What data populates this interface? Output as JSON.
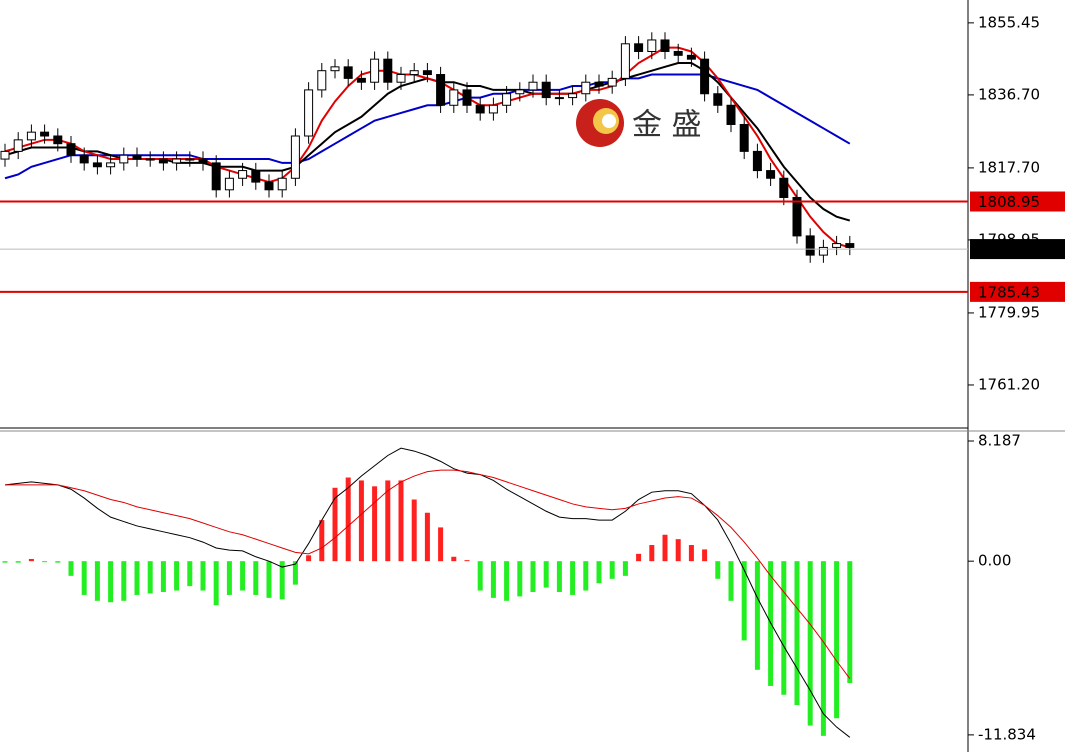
{
  "chart_data": [
    {
      "type": "candlestick",
      "ylim": [
        1750,
        1861.4
      ],
      "yticks": [
        1855.45,
        {
          "value": 1836.7,
          "label": "1836.70"
        },
        {
          "value": 1817.7,
          "label": "1817.70"
        },
        1798.95,
        1779.95,
        {
          "value": 1761.2,
          "label": "1761.20"
        }
      ],
      "up_color": "#ffffff",
      "down_color": "#000000",
      "open": [
        1820,
        1822,
        1825,
        1827,
        1826,
        1824,
        1821,
        1819,
        1818,
        1819,
        1821,
        1820,
        1820,
        1819,
        1820,
        1820,
        1819,
        1812,
        1815,
        1817,
        1814,
        1812,
        1815,
        1826,
        1838,
        1843,
        1844,
        1841,
        1840,
        1846,
        1840,
        1842,
        1843,
        1842,
        1834,
        1838,
        1834,
        1832,
        1834,
        1837,
        1838,
        1840,
        1836,
        1836,
        1837,
        1840,
        1839,
        1841,
        1850,
        1848,
        1851,
        1848,
        1847,
        1846,
        1837,
        1834,
        1829,
        1822,
        1817,
        1815,
        1810,
        1800,
        1795,
        1797,
        1798
      ],
      "high": [
        1824,
        1827,
        1829,
        1829,
        1828,
        1826,
        1823,
        1821,
        1821,
        1823,
        1823,
        1822,
        1822,
        1822,
        1822,
        1822,
        1821,
        1817,
        1819,
        1819,
        1816,
        1817,
        1828,
        1840,
        1845,
        1846,
        1846,
        1843,
        1848,
        1848,
        1844,
        1845,
        1845,
        1844,
        1840,
        1840,
        1836,
        1836,
        1839,
        1840,
        1842,
        1842,
        1838,
        1839,
        1842,
        1842,
        1843,
        1852,
        1852,
        1853,
        1853,
        1850,
        1849,
        1848,
        1839,
        1836,
        1831,
        1824,
        1819,
        1817,
        1812,
        1802,
        1799,
        1800,
        1800
      ],
      "low": [
        1818,
        1820,
        1823,
        1824,
        1822,
        1819,
        1817,
        1816,
        1816,
        1817,
        1818,
        1818,
        1817,
        1817,
        1818,
        1817,
        1810,
        1810,
        1813,
        1812,
        1810,
        1810,
        1813,
        1824,
        1836,
        1841,
        1839,
        1838,
        1838,
        1838,
        1838,
        1840,
        1840,
        1832,
        1832,
        1832,
        1830,
        1830,
        1832,
        1835,
        1836,
        1834,
        1834,
        1834,
        1835,
        1837,
        1837,
        1839,
        1846,
        1846,
        1846,
        1845,
        1844,
        1835,
        1832,
        1827,
        1820,
        1815,
        1813,
        1808,
        1798,
        1793,
        1793,
        1795,
        1795
      ],
      "close": [
        1822,
        1825,
        1827,
        1826,
        1824,
        1821,
        1819,
        1818,
        1819,
        1821,
        1820,
        1820,
        1819,
        1820,
        1820,
        1819,
        1812,
        1815,
        1817,
        1814,
        1812,
        1815,
        1826,
        1838,
        1843,
        1844,
        1841,
        1840,
        1846,
        1840,
        1842,
        1843,
        1842,
        1834,
        1838,
        1834,
        1832,
        1834,
        1837,
        1838,
        1840,
        1836,
        1836,
        1837,
        1840,
        1839,
        1841,
        1850,
        1848,
        1851,
        1848,
        1847,
        1846,
        1837,
        1834,
        1829,
        1822,
        1817,
        1815,
        1810,
        1800,
        1795,
        1797,
        1798,
        1797
      ],
      "series": [
        {
          "color": "#0000c8",
          "values": [
            1815,
            1816,
            1818,
            1819,
            1820,
            1821,
            1821,
            1821,
            1821,
            1821,
            1821,
            1821,
            1821,
            1821,
            1821,
            1820,
            1820,
            1820,
            1820,
            1820,
            1820,
            1819,
            1819,
            1820,
            1822,
            1824,
            1826,
            1828,
            1830,
            1831,
            1832,
            1833,
            1834,
            1834,
            1835,
            1836,
            1836,
            1837,
            1837,
            1838,
            1838,
            1838,
            1838,
            1839,
            1839,
            1840,
            1840,
            1841,
            1841,
            1842,
            1842,
            1842,
            1842,
            1842,
            1841,
            1840,
            1839,
            1838,
            1836,
            1834,
            1832,
            1830,
            1828,
            1826,
            1824
          ]
        },
        {
          "color": "#000000",
          "values": [
            1821,
            1822,
            1823,
            1823,
            1823,
            1823,
            1822,
            1822,
            1821,
            1820,
            1820,
            1820,
            1820,
            1819,
            1819,
            1819,
            1818,
            1818,
            1818,
            1817,
            1817,
            1817,
            1818,
            1821,
            1824,
            1827,
            1829,
            1831,
            1834,
            1837,
            1839,
            1840,
            1841,
            1840,
            1840,
            1839,
            1839,
            1838,
            1838,
            1838,
            1837,
            1837,
            1837,
            1837,
            1838,
            1839,
            1840,
            1841,
            1842,
            1843,
            1844,
            1845,
            1845,
            1843,
            1840,
            1836,
            1832,
            1828,
            1823,
            1818,
            1814,
            1810,
            1807,
            1805,
            1804
          ]
        },
        {
          "color": "#e00000",
          "values": [
            1822,
            1823,
            1824,
            1825,
            1825,
            1824,
            1822,
            1821,
            1820,
            1820,
            1820,
            1820,
            1820,
            1820,
            1820,
            1820,
            1818,
            1817,
            1816,
            1815,
            1814,
            1815,
            1818,
            1823,
            1830,
            1835,
            1839,
            1842,
            1843,
            1843,
            1842,
            1842,
            1841,
            1840,
            1838,
            1836,
            1834,
            1834,
            1835,
            1836,
            1837,
            1837,
            1837,
            1837,
            1838,
            1838,
            1839,
            1842,
            1845,
            1847,
            1849,
            1849,
            1848,
            1845,
            1841,
            1836,
            1831,
            1826,
            1820,
            1815,
            1810,
            1805,
            1801,
            1798,
            1797
          ]
        }
      ],
      "hlines": [
        {
          "value": 1808.95,
          "color": "#e00000"
        },
        {
          "value": 1785.43,
          "color": "#e00000"
        }
      ],
      "last_price": 1796.57,
      "watermark": "金 盛"
    },
    {
      "type": "macd",
      "ylim": [
        -13,
        8.8
      ],
      "yticks": [
        8.187,
        {
          "value": 0,
          "label": "0.00"
        },
        -11.834
      ],
      "pos_color": "#ff2020",
      "neg_color": "#22ee22",
      "values": [
        -0.1,
        -0.1,
        0.15,
        -0.05,
        -0.1,
        -1.0,
        -2.3,
        -2.7,
        -2.8,
        -2.7,
        -2.3,
        -2.2,
        -2.1,
        -2.0,
        -1.7,
        -2.0,
        -3.0,
        -2.3,
        -2.0,
        -2.3,
        -2.5,
        -2.6,
        -1.6,
        0.4,
        2.8,
        5.0,
        5.7,
        5.5,
        5.1,
        5.5,
        5.5,
        4.2,
        3.3,
        2.3,
        0.3,
        0.07,
        -2.0,
        -2.5,
        -2.7,
        -2.4,
        -2.1,
        -1.8,
        -2.1,
        -2.3,
        -2.0,
        -1.5,
        -1.2,
        -1.0,
        0.5,
        1.1,
        1.8,
        1.5,
        1.1,
        0.8,
        -1.2,
        -2.7,
        -5.4,
        -7.4,
        -8.5,
        -9.1,
        -9.8,
        -11.2,
        -11.9,
        -10.7,
        -8.3
      ],
      "series": [
        {
          "color": "#000000",
          "values": [
            5.2,
            5.3,
            5.4,
            5.3,
            5.2,
            4.9,
            4.3,
            3.6,
            3.0,
            2.7,
            2.4,
            2.2,
            2.0,
            1.8,
            1.6,
            1.3,
            0.9,
            0.75,
            0.7,
            0.3,
            0.0,
            -0.4,
            -0.2,
            1.2,
            2.8,
            4.3,
            5.0,
            5.8,
            6.5,
            7.2,
            7.7,
            7.5,
            7.2,
            6.8,
            6.3,
            6.0,
            5.9,
            5.5,
            4.9,
            4.4,
            3.9,
            3.4,
            3.0,
            2.9,
            2.9,
            2.8,
            2.8,
            3.4,
            4.2,
            4.7,
            4.8,
            4.8,
            4.6,
            3.8,
            2.8,
            1.2,
            -0.6,
            -2.5,
            -4.2,
            -5.8,
            -7.3,
            -8.8,
            -10.4,
            -11.3,
            -12.0
          ]
        },
        {
          "color": "#e00000",
          "values": [
            5.2,
            5.2,
            5.2,
            5.2,
            5.2,
            5.0,
            4.8,
            4.5,
            4.2,
            4.0,
            3.7,
            3.5,
            3.3,
            3.1,
            2.9,
            2.6,
            2.3,
            2.0,
            1.8,
            1.5,
            1.2,
            0.9,
            0.6,
            0.5,
            0.9,
            1.6,
            2.4,
            3.2,
            4.0,
            4.8,
            5.4,
            5.8,
            6.1,
            6.2,
            6.2,
            6.1,
            5.9,
            5.7,
            5.4,
            5.1,
            4.8,
            4.5,
            4.2,
            3.9,
            3.7,
            3.6,
            3.5,
            3.6,
            3.9,
            4.1,
            4.3,
            4.4,
            4.3,
            3.8,
            3.1,
            2.3,
            1.3,
            0.2,
            -1.0,
            -2.1,
            -3.2,
            -4.3,
            -5.5,
            -6.8,
            -8.0
          ]
        }
      ]
    }
  ]
}
